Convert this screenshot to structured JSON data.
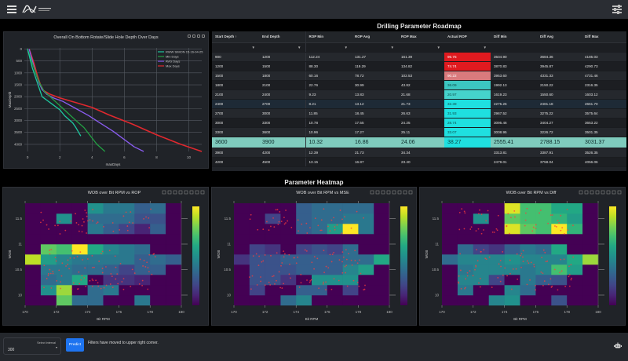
{
  "header": {
    "brand": "VISIONT OPERATIONS",
    "menu_icon": "hamburger-icon",
    "settings_icon": "sliders-icon"
  },
  "roadmap_title": "Drilling Parameter Roadmap",
  "heatmap_section_title": "Parameter Heatmap",
  "depth_chart": {
    "title": "Overall On Bottom Rotate/Slide Hole Depth Over Days",
    "xlabel": "maxDays",
    "ylabel": "MaxDepth",
    "x_ticks": [
      "0",
      "2",
      "4",
      "6",
      "8",
      "10"
    ],
    "y_ticks": [
      "0",
      "500",
      "1000",
      "1500",
      "2000",
      "2500",
      "3000",
      "3500",
      "4000"
    ],
    "legend": [
      "RWW SIMON 15-16-04-25",
      "Min Days",
      "AVG Days",
      "Max Days"
    ],
    "colors": [
      "#1dc9a0",
      "#22a043",
      "#8a5cf0",
      "#e0282e"
    ]
  },
  "chart_data": [
    {
      "type": "line",
      "title": "Overall On Bottom Rotate/Slide Hole Depth Over Days",
      "xlabel": "maxDays",
      "ylabel": "MaxDepth",
      "xlim": [
        -0.2,
        10.8
      ],
      "ylim": [
        4300,
        -50
      ],
      "series": [
        {
          "name": "RWW SIMON 15-16-04-25",
          "x": [
            0,
            0.15,
            0.3,
            0.5,
            0.7,
            0.9,
            1.2,
            1.5,
            1.8,
            2.0,
            2.3,
            2.8,
            3.0,
            3.3
          ],
          "y": [
            0,
            400,
            800,
            1200,
            1600,
            2000,
            2150,
            2300,
            2450,
            2550,
            2800,
            3100,
            3300,
            3650
          ]
        },
        {
          "name": "Min Days",
          "x": [
            0,
            0.2,
            0.4,
            0.6,
            0.8,
            1.0,
            1.4,
            1.8,
            2.2,
            2.6,
            3.0,
            3.5,
            3.9,
            4.3,
            4.8
          ],
          "y": [
            0,
            400,
            800,
            1200,
            1500,
            1750,
            2000,
            2250,
            2500,
            2750,
            3000,
            3300,
            3650,
            4000,
            4300
          ]
        },
        {
          "name": "AVG Days",
          "x": [
            0.1,
            0.3,
            0.5,
            0.7,
            0.9,
            1.2,
            1.6,
            2.2,
            3.0,
            3.8,
            4.6,
            5.3,
            6.0,
            6.6,
            7.2
          ],
          "y": [
            0,
            500,
            1000,
            1400,
            1700,
            1900,
            2050,
            2200,
            2500,
            2800,
            3150,
            3450,
            3800,
            4100,
            4300
          ]
        },
        {
          "name": "Max Days",
          "x": [
            0.1,
            0.4,
            0.6,
            0.8,
            1.0,
            1.4,
            2.0,
            3.0,
            4.0,
            5.0,
            6.5,
            8.0,
            9.5,
            10.8
          ],
          "y": [
            0,
            600,
            1100,
            1500,
            1750,
            1900,
            2050,
            2250,
            2450,
            2750,
            3150,
            3600,
            4000,
            4300
          ]
        }
      ]
    },
    {
      "type": "heatmap",
      "title": "WOB over Bit RPM vs ROP",
      "xlabel": "Bit RPM",
      "ylabel": "WOB",
      "x_ticks": [
        "170",
        "172",
        "174",
        "176",
        "178",
        "180"
      ],
      "y_ticks": [
        "10",
        "10.5",
        "11",
        "11.5"
      ],
      "x_bins": [
        170,
        171,
        172,
        173,
        174,
        175,
        176,
        177,
        178,
        179,
        180
      ],
      "y_bins": [
        9.8,
        10.0,
        10.2,
        10.4,
        10.6,
        10.8,
        11.0,
        11.2,
        11.4,
        11.6,
        11.8
      ],
      "z": [
        [
          0,
          0,
          0.75,
          0.35,
          0.35,
          0,
          0,
          0.4,
          0,
          0
        ],
        [
          0,
          0.5,
          0.85,
          0,
          0.35,
          0.4,
          0,
          0,
          0,
          0
        ],
        [
          0,
          0.35,
          0.4,
          0.6,
          0,
          0.15,
          0.15,
          0.1,
          0,
          0
        ],
        [
          0,
          0.4,
          0.4,
          0.35,
          0.35,
          0.3,
          0.2,
          0.3,
          0.3,
          0
        ],
        [
          0.9,
          0.55,
          0.45,
          0.4,
          0.4,
          0.4,
          0.4,
          0.3,
          0.35,
          0.3
        ],
        [
          0,
          0.75,
          0.7,
          1.0,
          0.6,
          0.45,
          0.4,
          0.35,
          0,
          0
        ],
        [
          0,
          0,
          0,
          0,
          0,
          0,
          0,
          0,
          0,
          0
        ],
        [
          0,
          0,
          0,
          0,
          0.4,
          0.3,
          0.2,
          0.1,
          0.3,
          0
        ],
        [
          0,
          0,
          0.5,
          0,
          0.35,
          0.35,
          0.35,
          0.25,
          0.25,
          0
        ],
        [
          0,
          0,
          0,
          0,
          0.5,
          0.4,
          0.4,
          0.3,
          0.35,
          0
        ]
      ]
    },
    {
      "type": "heatmap",
      "title": "WOB over Bit RPM vs MSE",
      "xlabel": "Bit RPM",
      "ylabel": "WOB",
      "x_ticks": [
        "170",
        "172",
        "174",
        "176",
        "178",
        "180"
      ],
      "y_ticks": [
        "10",
        "10.5",
        "11",
        "11.5"
      ],
      "x_bins": [
        170,
        171,
        172,
        173,
        174,
        175,
        176,
        177,
        178,
        179,
        180
      ],
      "y_bins": [
        9.8,
        10.0,
        10.2,
        10.4,
        10.6,
        10.8,
        11.0,
        11.2,
        11.4,
        11.6,
        11.8
      ],
      "z": [
        [
          0,
          0,
          0,
          0.35,
          0.45,
          0,
          0,
          0,
          0,
          0
        ],
        [
          0,
          0.2,
          0,
          0,
          0.3,
          0.3,
          0,
          0.2,
          0,
          0
        ],
        [
          0,
          0.25,
          0.25,
          0.15,
          0,
          0.5,
          0.5,
          0.5,
          0,
          0
        ],
        [
          0,
          0.25,
          0.25,
          0.25,
          0.3,
          0.3,
          0.3,
          0.45,
          0.55,
          0
        ],
        [
          0.15,
          0.25,
          0.25,
          0.3,
          0.3,
          0.3,
          0.3,
          0.35,
          0.35,
          0.6
        ],
        [
          0,
          0.2,
          0.15,
          0,
          0.2,
          0.25,
          0.2,
          0.35,
          0,
          0
        ],
        [
          0,
          0,
          0,
          0,
          0,
          0,
          0,
          0,
          0,
          0
        ],
        [
          0,
          0,
          0,
          0,
          0.3,
          0.35,
          0.55,
          1.0,
          0.4,
          0
        ],
        [
          0,
          0,
          0.2,
          0,
          0.3,
          0.35,
          0.35,
          0.4,
          0.4,
          0
        ],
        [
          0,
          0,
          0,
          0,
          0.3,
          0.35,
          0.35,
          0.35,
          0.35,
          0
        ]
      ]
    },
    {
      "type": "heatmap",
      "title": "WOB over Bit RPM vs Diff",
      "xlabel": "Bit RPM",
      "ylabel": "WOB",
      "x_ticks": [
        "170",
        "172",
        "174",
        "176",
        "178",
        "180"
      ],
      "y_ticks": [
        "10",
        "10.5",
        "11",
        "11.5"
      ],
      "x_bins": [
        170,
        171,
        172,
        173,
        174,
        175,
        176,
        177,
        178,
        179,
        180
      ],
      "y_bins": [
        9.8,
        10.0,
        10.2,
        10.4,
        10.6,
        10.8,
        11.0,
        11.2,
        11.4,
        11.6,
        11.8
      ],
      "z": [
        [
          0,
          0,
          0,
          0.45,
          0.5,
          0,
          0,
          0.25,
          0,
          0
        ],
        [
          0,
          0.4,
          0,
          0,
          0.45,
          0.35,
          0,
          0,
          0,
          0
        ],
        [
          0,
          0.45,
          0.45,
          0.2,
          0,
          0.4,
          0.3,
          0.25,
          0,
          0
        ],
        [
          0,
          0.4,
          0.45,
          0.45,
          0.45,
          0.4,
          0.45,
          0.7,
          0.55,
          0
        ],
        [
          0.35,
          0.45,
          0.45,
          0.45,
          0.5,
          0.45,
          0.45,
          0.45,
          0.6,
          0.85
        ],
        [
          0,
          0.35,
          0.2,
          0.15,
          0.3,
          0.4,
          0.35,
          0.6,
          0,
          0
        ],
        [
          0,
          0,
          0,
          0,
          0,
          0,
          0,
          0,
          0,
          0
        ],
        [
          0,
          0,
          0,
          0,
          0.95,
          0.75,
          0.7,
          1.0,
          0.65,
          0
        ],
        [
          0,
          0,
          0.5,
          0,
          0.75,
          0.7,
          0.7,
          0.65,
          0.55,
          0
        ],
        [
          0,
          0,
          0,
          0,
          0.95,
          0.7,
          0.7,
          0.6,
          0.6,
          0
        ]
      ]
    }
  ],
  "table": {
    "columns": [
      "Start Depth",
      "End Depth",
      "ROP Min",
      "ROP Avg",
      "ROP Max",
      "Actual ROP",
      "Diff Min",
      "Diff Avg",
      "Diff Max"
    ],
    "sort_indicator": "↑",
    "filter_icon": "▼",
    "rows": [
      [
        "900",
        "1200",
        "112.24",
        "131.27",
        "161.39",
        "96.75",
        "3504.90",
        "3684.36",
        "4185.03"
      ],
      [
        "1200",
        "1500",
        "88.30",
        "119.29",
        "134.82",
        "74.74",
        "3870.83",
        "3945.87",
        "4290.73"
      ],
      [
        "1500",
        "1800",
        "60.16",
        "78.72",
        "102.53",
        "90.22",
        "3953.60",
        "4331.33",
        "4731.46"
      ],
      [
        "1800",
        "2100",
        "22.76",
        "30.99",
        "43.82",
        "36.09",
        "1992.13",
        "2150.22",
        "2316.35"
      ],
      [
        "2100",
        "2400",
        "9.23",
        "13.83",
        "21.68",
        "20.97",
        "1619.23",
        "1550.60",
        "1603.12"
      ],
      [
        "2400",
        "2700",
        "8.21",
        "13.12",
        "21.73",
        "32.39",
        "2275.26",
        "2481.18",
        "2661.70"
      ],
      [
        "2700",
        "3000",
        "11.85",
        "18.45",
        "26.63",
        "31.93",
        "2967.52",
        "3275.22",
        "3575.64"
      ],
      [
        "3000",
        "3300",
        "10.78",
        "17.55",
        "24.25",
        "28.74",
        "3095.46",
        "3404.27",
        "3653.22"
      ],
      [
        "3300",
        "3600",
        "10.96",
        "17.27",
        "25.11",
        "33.07",
        "3008.95",
        "3226.72",
        "3501.35"
      ],
      [
        "3600",
        "3900",
        "10.32",
        "16.86",
        "24.06",
        "38.27",
        "2555.41",
        "2788.15",
        "3031.37"
      ],
      [
        "3900",
        "4200",
        "12.39",
        "21.73",
        "34.34",
        "",
        "3313.81",
        "3387.91",
        "3526.35"
      ],
      [
        "4200",
        "4500",
        "13.15",
        "16.87",
        "23.40",
        "",
        "2479.01",
        "3758.04",
        "4056.06"
      ]
    ],
    "actual_rop_colors": [
      "#e01a1f",
      "#e01a1f",
      "#d97a7d",
      "#3cc6c1",
      "#45d3cc",
      "#1fe0e0",
      "#1fe0e0",
      "#1fe0e0",
      "#1fe0e0",
      "#1fe0e0",
      "",
      ""
    ],
    "selected_row": 9,
    "hover_row": 5
  },
  "footer": {
    "interval_label": "Select interval",
    "interval_value": "300",
    "predict_label": "Predict",
    "notice": "Filters have moved to upper right corner."
  },
  "accent": "#1e74f0"
}
